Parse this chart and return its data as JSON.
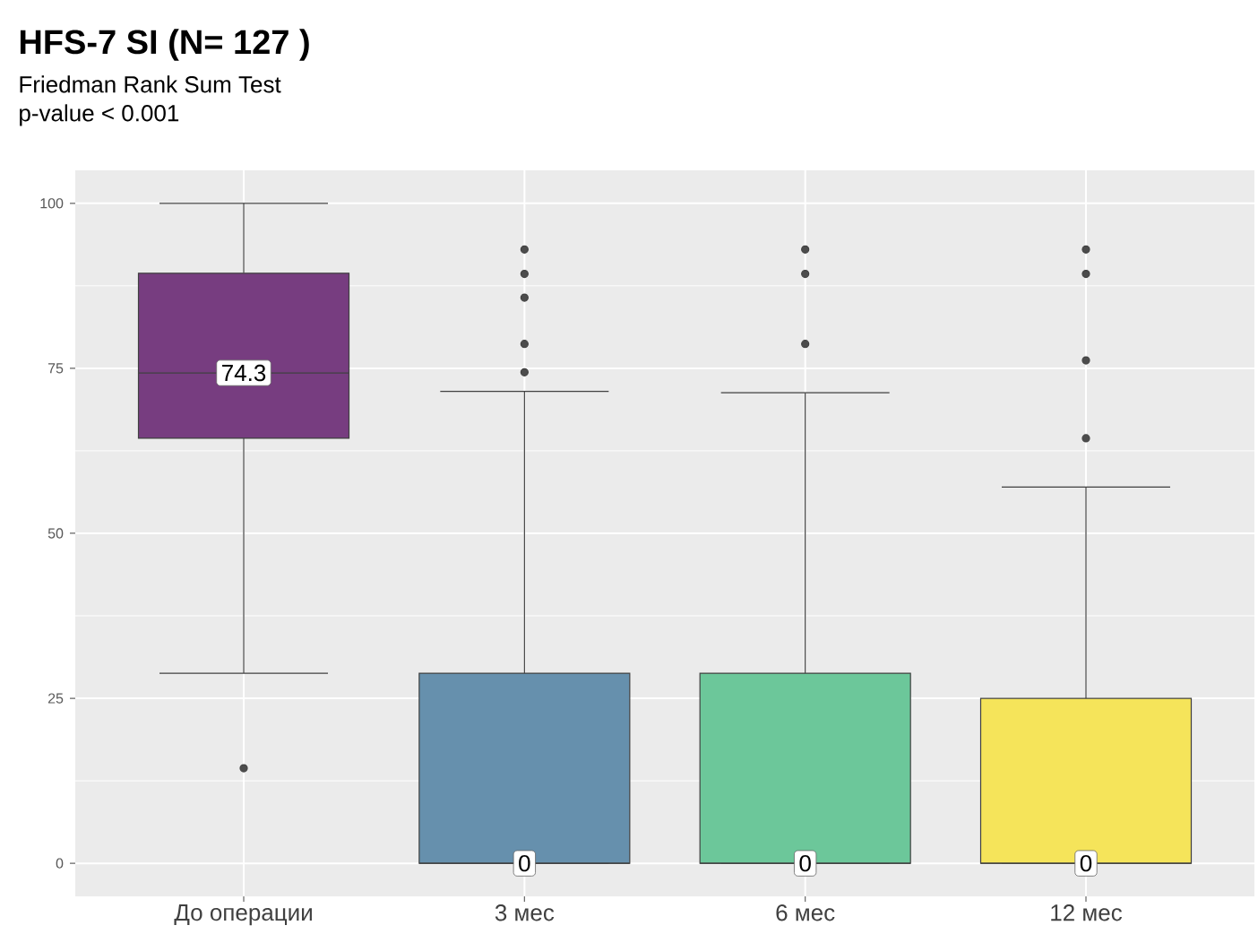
{
  "chart_data": {
    "type": "box",
    "title": "HFS-7 SI (N= 127 )",
    "subtitle": "Friedman Rank Sum Test",
    "annotations": [
      "p-value  < 0.001"
    ],
    "categories": [
      "До операции",
      "3 мес",
      "6 мес",
      "12 мес"
    ],
    "colors": [
      "#773d80",
      "#6690ad",
      "#6cc79a",
      "#f5e45a"
    ],
    "boxes": [
      {
        "low": 28.8,
        "q1": 64.4,
        "median": 74.3,
        "q3": 89.4,
        "high": 100,
        "outliers": [
          14.4
        ]
      },
      {
        "low": 0,
        "q1": 0,
        "median": 0,
        "q3": 28.8,
        "high": 71.5,
        "outliers": [
          74.4,
          78.7,
          85.7,
          89.3,
          93.0
        ]
      },
      {
        "low": 0,
        "q1": 0,
        "median": 0,
        "q3": 28.8,
        "high": 71.3,
        "outliers": [
          78.7,
          89.3,
          93.0
        ]
      },
      {
        "low": 0,
        "q1": 0,
        "median": 0,
        "q3": 25.0,
        "high": 57.0,
        "outliers": [
          64.4,
          76.2,
          89.3,
          93.0
        ]
      }
    ],
    "value_labels": [
      "74.3",
      "0",
      "0",
      "0"
    ],
    "ylim": [
      -5,
      105
    ],
    "yticks": [
      0,
      25,
      50,
      75,
      100
    ],
    "grid": true
  }
}
